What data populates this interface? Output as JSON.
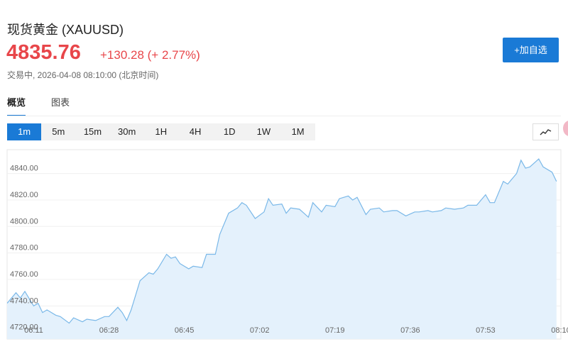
{
  "header": {
    "title": "现货黄金 (XAUUSD)",
    "price": "4835.76",
    "change": "+130.28 (+ 2.77%)",
    "status": "交易中, 2026-04-08 08:10:00 (北京时间)"
  },
  "watch_button": "+加自选",
  "tabs": [
    "概览",
    "图表"
  ],
  "intervals": [
    "1m",
    "5m",
    "15m",
    "30m",
    "1H",
    "4H",
    "1D",
    "1W",
    "1M"
  ],
  "chart_data": {
    "type": "line",
    "x": [
      365,
      367,
      368,
      369,
      371,
      372,
      373,
      374,
      376,
      377,
      379,
      380,
      382,
      383,
      385,
      387,
      388,
      390,
      391,
      392,
      393,
      395,
      397,
      398,
      399,
      401,
      402,
      403,
      404,
      406,
      407,
      409,
      410,
      412,
      413,
      415,
      417,
      418,
      419,
      421,
      423,
      424,
      425,
      427,
      428,
      429,
      431,
      432,
      433,
      434,
      436,
      437,
      439,
      440,
      442,
      443,
      444,
      446,
      447,
      449,
      450,
      452,
      453,
      455,
      457,
      458,
      460,
      461,
      463,
      464,
      466,
      468,
      469,
      471,
      473,
      474,
      475,
      477,
      478,
      480,
      481,
      482,
      483,
      485,
      486,
      488,
      489
    ],
    "series": [
      {
        "color": "#7ab8e8",
        "fill": "#e4f1fc",
        "values": [
          4742,
          4750,
          4746,
          4751,
          4740,
          4742,
          4735,
          4737,
          4733,
          4732,
          4727,
          4731,
          4728,
          4730,
          4729,
          4732,
          4732,
          4739,
          4735,
          4729,
          4737,
          4759,
          4765,
          4764,
          4768,
          4779,
          4776,
          4777,
          4772,
          4768,
          4770,
          4769,
          4779,
          4779,
          4794,
          4810,
          4814,
          4818,
          4816,
          4806,
          4811,
          4821,
          4816,
          4817,
          4810,
          4814,
          4813,
          4810,
          4807,
          4818,
          4811,
          4816,
          4815,
          4821,
          4823,
          4820,
          4822,
          4809,
          4813,
          4814,
          4811,
          4812,
          4812,
          4808,
          4811,
          4811,
          4812,
          4811,
          4812,
          4814,
          4813,
          4814,
          4816,
          4816,
          4824,
          4818,
          4818,
          4834,
          4832,
          4840,
          4850,
          4844,
          4845,
          4851,
          4845,
          4841,
          4834
        ]
      }
    ],
    "xlim": [
      365,
      490
    ],
    "ylim": [
      4715,
      4858
    ],
    "xticks": [
      {
        "value": 371,
        "label": "06:11"
      },
      {
        "value": 388,
        "label": "06:28"
      },
      {
        "value": 405,
        "label": "06:45"
      },
      {
        "value": 422,
        "label": "07:02"
      },
      {
        "value": 439,
        "label": "07:19"
      },
      {
        "value": 456,
        "label": "07:36"
      },
      {
        "value": 473,
        "label": "07:53"
      },
      {
        "value": 490,
        "label": "08:10"
      }
    ],
    "yticks": [
      {
        "value": 4720,
        "label": "4720.00"
      },
      {
        "value": 4740,
        "label": "4740.00"
      },
      {
        "value": 4760,
        "label": "4760.00"
      },
      {
        "value": 4780,
        "label": "4780.00"
      },
      {
        "value": 4800,
        "label": "4800.00"
      },
      {
        "value": 4820,
        "label": "4820.00"
      },
      {
        "value": 4840,
        "label": "4840.00"
      }
    ],
    "grid": true
  }
}
